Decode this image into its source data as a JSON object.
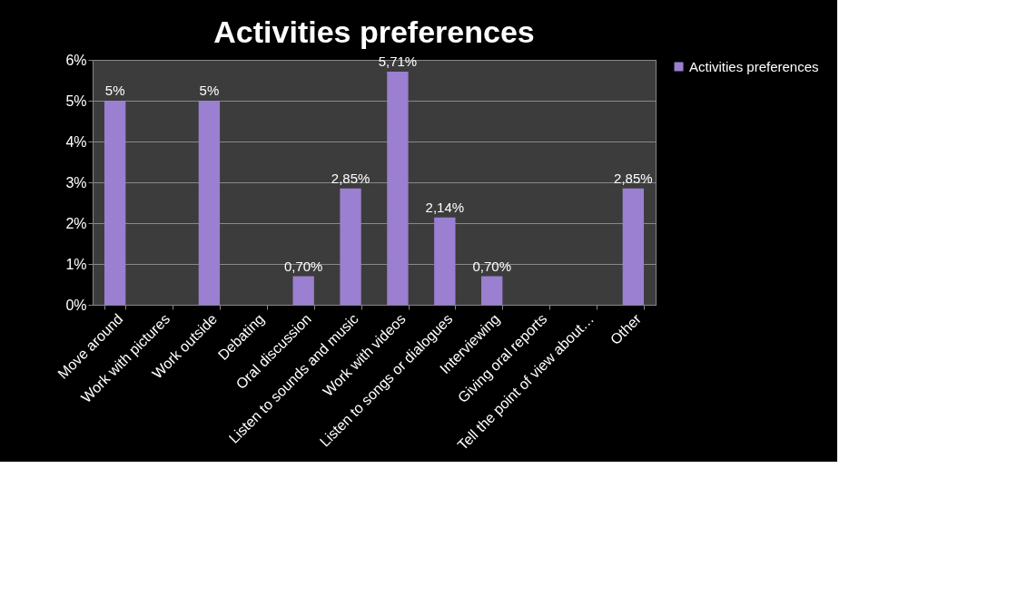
{
  "chart_data": {
    "type": "bar",
    "title": "Activities preferences",
    "categories": [
      "Move around",
      "Work with pictures",
      "Work outside",
      "Debating",
      "Oral discussion",
      "Listen to sounds and music",
      "Work with videos",
      "Listen to songs or dialogues",
      "Interviewing",
      "Giving oral reports",
      "Tell the point of view about…",
      "Other"
    ],
    "series": [
      {
        "name": "Activities preferences",
        "color": "#9b7fd0",
        "values": [
          5,
          0,
          5,
          0,
          0.7,
          2.85,
          5.71,
          2.14,
          0.7,
          0,
          0,
          2.85
        ],
        "value_labels": [
          "5%",
          null,
          "5%",
          null,
          "0,70%",
          "2,85%",
          "5,71%",
          "2,14%",
          "0,70%",
          null,
          null,
          "2,85%"
        ]
      }
    ],
    "ylim": [
      0,
      6
    ],
    "yticks": [
      {
        "value": 0,
        "label": "0%"
      },
      {
        "value": 1,
        "label": "1%"
      },
      {
        "value": 2,
        "label": "2%"
      },
      {
        "value": 3,
        "label": "3%"
      },
      {
        "value": 4,
        "label": "4%"
      },
      {
        "value": 5,
        "label": "5%"
      },
      {
        "value": 6,
        "label": "6%"
      }
    ],
    "grid": "y",
    "legend": "right"
  }
}
